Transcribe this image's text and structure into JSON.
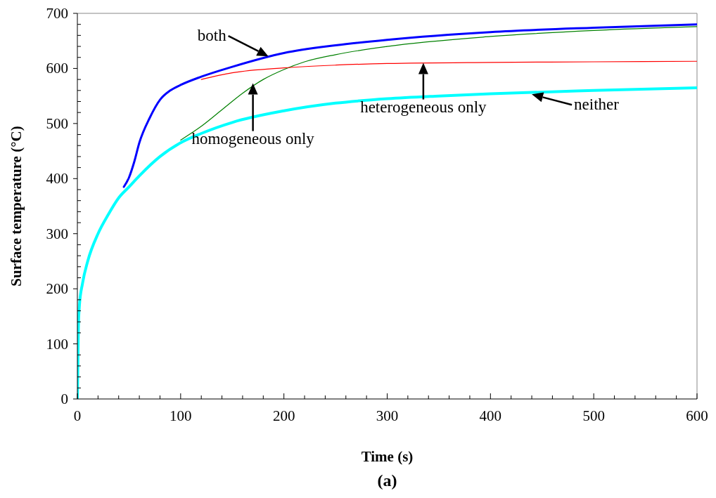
{
  "chart_data": {
    "type": "line",
    "title": "(a)",
    "xlabel": "Time (s)",
    "ylabel": "Surface temperature (°C)",
    "xlim": [
      0,
      600
    ],
    "ylim": [
      0,
      700
    ],
    "xticks": [
      0,
      {
        "value": 20,
        "label": null
      },
      {
        "value": 40,
        "label": null
      },
      {
        "value": 60,
        "label": null
      },
      {
        "value": 80,
        "label": null
      },
      100,
      {
        "value": 120,
        "label": null
      },
      {
        "value": 140,
        "label": null
      },
      {
        "value": 160,
        "label": null
      },
      {
        "value": 180,
        "label": null
      },
      200,
      {
        "value": 220,
        "label": null
      },
      {
        "value": 240,
        "label": null
      },
      {
        "value": 260,
        "label": null
      },
      {
        "value": 280,
        "label": null
      },
      300,
      {
        "value": 320,
        "label": null
      },
      {
        "value": 340,
        "label": null
      },
      {
        "value": 360,
        "label": null
      },
      {
        "value": 380,
        "label": null
      },
      400,
      {
        "value": 420,
        "label": null
      },
      {
        "value": 440,
        "label": null
      },
      {
        "value": 460,
        "label": null
      },
      {
        "value": 480,
        "label": null
      },
      500,
      {
        "value": 520,
        "label": null
      },
      {
        "value": 540,
        "label": null
      },
      {
        "value": 560,
        "label": null
      },
      {
        "value": 580,
        "label": null
      },
      600
    ],
    "yticks": [
      0,
      {
        "value": 20,
        "label": null
      },
      {
        "value": 40,
        "label": null
      },
      {
        "value": 60,
        "label": null
      },
      {
        "value": 80,
        "label": null
      },
      100,
      {
        "value": 120,
        "label": null
      },
      {
        "value": 140,
        "label": null
      },
      {
        "value": 160,
        "label": null
      },
      {
        "value": 180,
        "label": null
      },
      200,
      {
        "value": 220,
        "label": null
      },
      {
        "value": 240,
        "label": null
      },
      {
        "value": 260,
        "label": null
      },
      {
        "value": 280,
        "label": null
      },
      300,
      {
        "value": 320,
        "label": null
      },
      {
        "value": 340,
        "label": null
      },
      {
        "value": 360,
        "label": null
      },
      {
        "value": 380,
        "label": null
      },
      400,
      {
        "value": 420,
        "label": null
      },
      {
        "value": 440,
        "label": null
      },
      {
        "value": 460,
        "label": null
      },
      {
        "value": 480,
        "label": null
      },
      500,
      {
        "value": 520,
        "label": null
      },
      {
        "value": 540,
        "label": null
      },
      {
        "value": 560,
        "label": null
      },
      {
        "value": 580,
        "label": null
      },
      600,
      {
        "value": 620,
        "label": null
      },
      {
        "value": 640,
        "label": null
      },
      {
        "value": 660,
        "label": null
      },
      {
        "value": 680,
        "label": null
      },
      700
    ],
    "grid": false,
    "marker": "none",
    "line_style": "solid",
    "series": [
      {
        "color": "#008000",
        "x": [
          100,
          120,
          140,
          160,
          180,
          200,
          220,
          250,
          300,
          400,
          500,
          600
        ],
        "values": [
          470,
          495,
          525,
          555,
          580,
          598,
          612,
          625,
          640,
          658,
          669,
          676
        ]
      },
      {
        "color": "#ff0000",
        "x": [
          120,
          150,
          200,
          250,
          300,
          400,
          500,
          600
        ],
        "values": [
          580,
          592,
          601,
          606,
          609,
          611,
          612,
          613
        ]
      },
      {
        "color": "#0000ff",
        "x": [
          45,
          50,
          55,
          60,
          70,
          80,
          90,
          100,
          120,
          150,
          200,
          250,
          300,
          400,
          500,
          600
        ],
        "values": [
          385,
          402,
          430,
          465,
          510,
          543,
          560,
          570,
          585,
          603,
          628,
          642,
          652,
          666,
          674,
          680
        ]
      },
      {
        "color": "#00ffff",
        "x": [
          0,
          1,
          2,
          5,
          10,
          20,
          30,
          40,
          50,
          60,
          80,
          100,
          120,
          150,
          200,
          250,
          300,
          350,
          400,
          500,
          600
        ],
        "values": [
          0,
          130,
          170,
          210,
          250,
          300,
          335,
          365,
          385,
          405,
          440,
          465,
          482,
          502,
          523,
          537,
          545,
          550,
          554,
          560,
          565
        ]
      }
    ],
    "annotations": [
      {
        "text": "both",
        "x": 185,
        "y": 622
      },
      {
        "text": "homogeneous only",
        "x": 170,
        "y": 573
      },
      {
        "text": "heterogeneous only",
        "x": 335,
        "y": 610
      },
      {
        "text": "neither",
        "x": 440,
        "y": 553
      }
    ]
  }
}
